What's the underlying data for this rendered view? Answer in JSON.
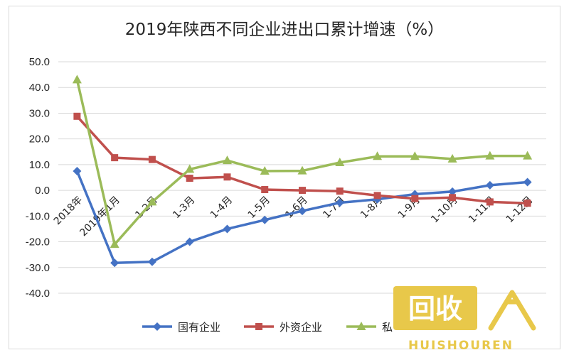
{
  "chart_data": {
    "type": "line",
    "title": "2019年陕西不同企业进出口累计增速（%）",
    "categories": [
      "2018年",
      "2019年1月",
      "1-2月",
      "1-3月",
      "1-4月",
      "1-5月",
      "1-6月",
      "1-7月",
      "1-8月",
      "1-9月",
      "1-10月",
      "1-11月",
      "1-12月"
    ],
    "ylim": [
      -40,
      50
    ],
    "yticks": [
      "50.0",
      "40.0",
      "30.0",
      "20.0",
      "10.0",
      "0.0",
      "-10.0",
      "-20.0",
      "-30.0",
      "-40.0"
    ],
    "grid": true,
    "legend_position": "bottom",
    "series": [
      {
        "name": "国有企业",
        "color": "#4472c4",
        "marker": "diamond",
        "values": [
          7.5,
          -28.2,
          -27.8,
          -20.0,
          -15.0,
          -11.5,
          -8.0,
          -4.8,
          -3.5,
          -1.5,
          -0.5,
          2.0,
          3.2
        ]
      },
      {
        "name": "外资企业",
        "color": "#c0504d",
        "marker": "square",
        "values": [
          28.8,
          12.7,
          12.0,
          4.7,
          5.2,
          0.3,
          0.0,
          -0.3,
          -2.0,
          -3.2,
          -2.8,
          -4.5,
          -5.0
        ]
      },
      {
        "name": "私",
        "color": "#9bbb59",
        "marker": "triangle",
        "values": [
          43.0,
          -21.0,
          -4.5,
          8.2,
          11.6,
          7.5,
          7.6,
          10.8,
          13.2,
          13.2,
          12.2,
          13.4,
          13.4
        ]
      }
    ]
  },
  "watermark": {
    "text": "HUISHOUREN",
    "logo_glyphs": "回收人",
    "color": "#e8c84a"
  }
}
